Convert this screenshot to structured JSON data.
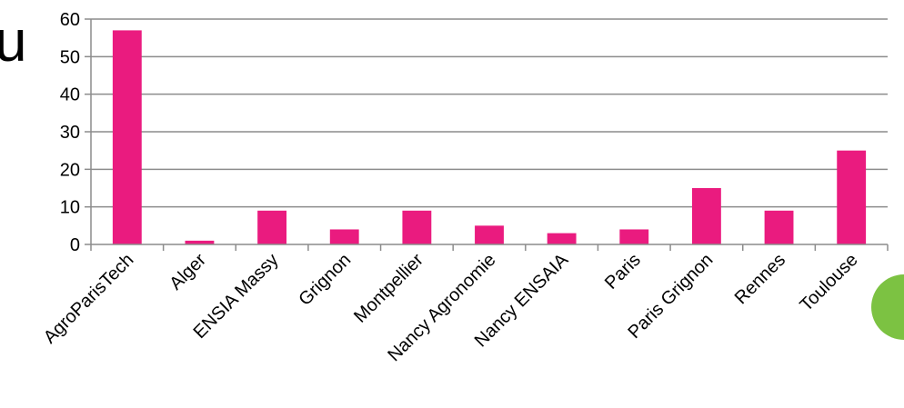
{
  "edge_text": "u",
  "chart_data": {
    "type": "bar",
    "categories": [
      "AgroParisTech",
      "Alger",
      "ENSIA Massy",
      "Grignon",
      "Montpellier",
      "Nancy Agronomie",
      "Nancy ENSAIA",
      "Paris",
      "Paris Grignon",
      "Rennes",
      "Toulouse"
    ],
    "values": [
      57,
      1,
      9,
      4,
      9,
      5,
      3,
      4,
      15,
      9,
      25
    ],
    "yticks": [
      0,
      10,
      20,
      30,
      40,
      50,
      60
    ],
    "ylim": [
      0,
      60
    ],
    "grid": true,
    "bar_color": "#ea1b7f",
    "decoration_color": "#7cc242"
  }
}
